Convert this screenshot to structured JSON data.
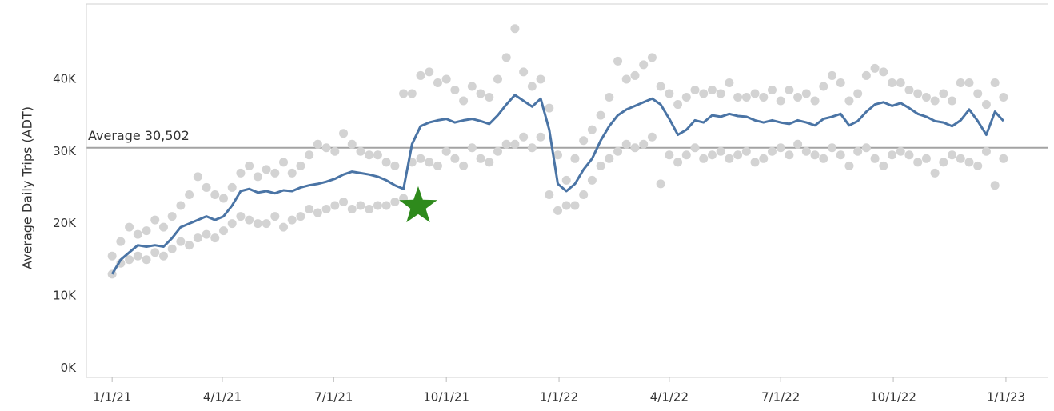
{
  "chart_data": {
    "type": "line",
    "y_label": "Average Daily Trips (ADT)",
    "xlim": [
      "2020-12-11",
      "2023-02-04"
    ],
    "xticks": [
      {
        "value": "2021-01-01",
        "label": "1/1/21"
      },
      {
        "value": "2021-04-01",
        "label": "4/1/21"
      },
      {
        "value": "2021-07-01",
        "label": "7/1/21"
      },
      {
        "value": "2021-10-01",
        "label": "10/1/21"
      },
      {
        "value": "2022-01-01",
        "label": "1/1/22"
      },
      {
        "value": "2022-04-01",
        "label": "4/1/22"
      },
      {
        "value": "2022-07-01",
        "label": "7/1/22"
      },
      {
        "value": "2022-10-01",
        "label": "10/1/22"
      },
      {
        "value": "2023-01-01",
        "label": "1/1/23"
      }
    ],
    "ylim": [
      -1300,
      50400
    ],
    "yticks": [
      {
        "value": 0,
        "label": "0K"
      },
      {
        "value": 10000,
        "label": "10K"
      },
      {
        "value": 20000,
        "label": "20K"
      },
      {
        "value": 30000,
        "label": "30K"
      },
      {
        "value": 40000,
        "label": "40K"
      }
    ],
    "grid": true,
    "reference_line": {
      "value": 30502,
      "label": "Average 30,502",
      "color": "#a3a3a3"
    },
    "annotations": [
      {
        "type": "star",
        "x": "2021-09-08",
        "y": 22400,
        "color": "#2e8a1c"
      }
    ],
    "x": [
      "2021-01-01",
      "2021-01-08",
      "2021-01-15",
      "2021-01-22",
      "2021-01-29",
      "2021-02-05",
      "2021-02-12",
      "2021-02-19",
      "2021-02-26",
      "2021-03-05",
      "2021-03-12",
      "2021-03-19",
      "2021-03-26",
      "2021-04-02",
      "2021-04-09",
      "2021-04-16",
      "2021-04-23",
      "2021-04-30",
      "2021-05-07",
      "2021-05-14",
      "2021-05-21",
      "2021-05-28",
      "2021-06-04",
      "2021-06-11",
      "2021-06-18",
      "2021-06-25",
      "2021-07-02",
      "2021-07-09",
      "2021-07-16",
      "2021-07-23",
      "2021-07-30",
      "2021-08-06",
      "2021-08-13",
      "2021-08-20",
      "2021-08-27",
      "2021-09-03",
      "2021-09-10",
      "2021-09-17",
      "2021-09-24",
      "2021-10-01",
      "2021-10-08",
      "2021-10-15",
      "2021-10-22",
      "2021-10-29",
      "2021-11-05",
      "2021-11-12",
      "2021-11-19",
      "2021-11-26",
      "2021-12-03",
      "2021-12-10",
      "2021-12-17",
      "2021-12-24",
      "2021-12-31",
      "2022-01-07",
      "2022-01-14",
      "2022-01-21",
      "2022-01-28",
      "2022-02-04",
      "2022-02-11",
      "2022-02-18",
      "2022-02-25",
      "2022-03-04",
      "2022-03-11",
      "2022-03-18",
      "2022-03-25",
      "2022-04-01",
      "2022-04-08",
      "2022-04-15",
      "2022-04-22",
      "2022-04-29",
      "2022-05-06",
      "2022-05-13",
      "2022-05-20",
      "2022-05-27",
      "2022-06-03",
      "2022-06-10",
      "2022-06-17",
      "2022-06-24",
      "2022-07-01",
      "2022-07-08",
      "2022-07-15",
      "2022-07-22",
      "2022-07-29",
      "2022-08-05",
      "2022-08-12",
      "2022-08-19",
      "2022-08-26",
      "2022-09-02",
      "2022-09-09",
      "2022-09-16",
      "2022-09-23",
      "2022-09-30",
      "2022-10-07",
      "2022-10-14",
      "2022-10-21",
      "2022-10-28",
      "2022-11-04",
      "2022-11-11",
      "2022-11-18",
      "2022-11-25",
      "2022-12-02",
      "2022-12-09",
      "2022-12-16",
      "2022-12-23",
      "2022-12-30"
    ],
    "series": [
      {
        "type": "scatter",
        "color": "#d3d3d3",
        "values": [
          15500,
          17500,
          19500,
          18500,
          19000,
          20500,
          19500,
          21000,
          22500,
          24000,
          26500,
          25000,
          24000,
          23500,
          25000,
          27000,
          28000,
          26500,
          27500,
          27000,
          28500,
          27000,
          28000,
          29500,
          31000,
          30500,
          30000,
          32500,
          31000,
          30000,
          29500,
          29500,
          28500,
          28000,
          38000,
          38000,
          40500,
          41000,
          39500,
          40000,
          38500,
          37000,
          39000,
          38000,
          37500,
          40000,
          43000,
          47000,
          41000,
          39000,
          40000,
          36000,
          29500,
          26000,
          29000,
          31500,
          33000,
          35000,
          37500,
          42500,
          40000,
          40500,
          42000,
          43000,
          39000,
          38000,
          36500,
          37500,
          38500,
          38000,
          38500,
          38000,
          39500,
          37500,
          37500,
          38000,
          37500,
          38500,
          37000,
          38500,
          37500,
          38000,
          37000,
          39000,
          40500,
          39500,
          37000,
          38000,
          40500,
          41500,
          41000,
          39500,
          39500,
          38500,
          38000,
          37500,
          37000,
          38000,
          37000,
          39500,
          39500,
          38000,
          36500,
          39500,
          37500
        ]
      },
      {
        "type": "scatter",
        "color": "#d3d3d3",
        "values": [
          13000,
          14500,
          15000,
          15500,
          15000,
          16000,
          15500,
          16500,
          17500,
          17000,
          18000,
          18500,
          18000,
          19000,
          20000,
          21000,
          20500,
          20000,
          20000,
          21000,
          19500,
          20500,
          21000,
          22000,
          21500,
          22000,
          22500,
          23000,
          22000,
          22500,
          22000,
          22500,
          22500,
          23000,
          23500,
          28500,
          29000,
          28500,
          28000,
          30000,
          29000,
          28000,
          30500,
          29000,
          28500,
          30000,
          31000,
          31000,
          32000,
          30500,
          32000,
          24000,
          21800,
          22500,
          22500,
          24000,
          26000,
          28000,
          29000,
          30000,
          31000,
          30500,
          31000,
          32000,
          25500,
          29500,
          28500,
          29500,
          30500,
          29000,
          29500,
          30000,
          29000,
          29500,
          30000,
          28500,
          29000,
          30000,
          30500,
          29500,
          31000,
          30000,
          29500,
          29000,
          30500,
          29500,
          28000,
          30000,
          30500,
          29000,
          28000,
          29500,
          30000,
          29500,
          28500,
          29000,
          27000,
          28500,
          29500,
          29000,
          28500,
          28000,
          30000,
          25300,
          29000
        ]
      },
      {
        "type": "line",
        "color": "#4a74a5",
        "values": [
          13000,
          15000,
          16000,
          17000,
          16800,
          17000,
          16800,
          18000,
          19500,
          20000,
          20500,
          21000,
          20500,
          21000,
          22500,
          24500,
          24800,
          24300,
          24500,
          24200,
          24600,
          24500,
          25000,
          25300,
          25500,
          25800,
          26200,
          26800,
          27200,
          27000,
          26800,
          26500,
          26000,
          25300,
          24800,
          31000,
          33500,
          34000,
          34300,
          34500,
          34000,
          34300,
          34500,
          34200,
          33800,
          35000,
          36500,
          37800,
          37000,
          36200,
          37300,
          33000,
          25500,
          24500,
          25500,
          27500,
          29000,
          31500,
          33500,
          35000,
          35800,
          36300,
          36800,
          37300,
          36500,
          34500,
          32300,
          33000,
          34300,
          34000,
          35000,
          34800,
          35200,
          34900,
          34800,
          34300,
          34000,
          34300,
          34000,
          33800,
          34300,
          34000,
          33600,
          34500,
          34800,
          35200,
          33600,
          34200,
          35500,
          36500,
          36800,
          36300,
          36700,
          36000,
          35200,
          34800,
          34200,
          34000,
          33500,
          34300,
          35800,
          34200,
          32300,
          35500,
          34200
        ]
      }
    ]
  }
}
